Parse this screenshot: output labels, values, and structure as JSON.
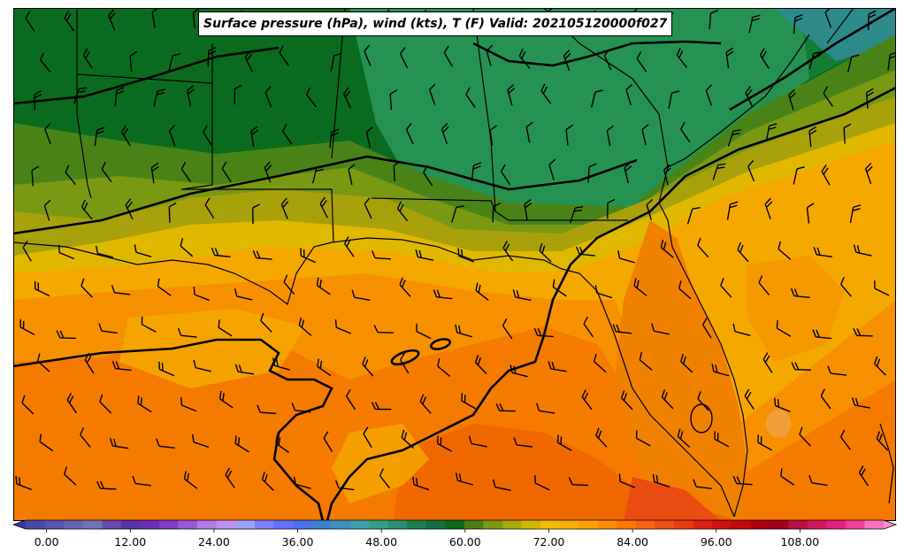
{
  "title": "Surface pressure (hPa), wind (kts), T (F) Valid: 202105120000f027",
  "colorbar": {
    "ticks": [
      "0.00",
      "12.00",
      "24.00",
      "36.00",
      "48.00",
      "60.00",
      "72.00",
      "84.00",
      "96.00",
      "108.00"
    ],
    "min": -3,
    "max": 120,
    "step": 3,
    "colors": [
      "#3a3aa0",
      "#4848a8",
      "#5656b0",
      "#6464b8",
      "#7272b8",
      "#6a4ab0",
      "#5a30a8",
      "#6c2cb8",
      "#7e3cc8",
      "#9a5ad8",
      "#b47ae8",
      "#c090f0",
      "#a0a0ff",
      "#8080ff",
      "#6070ff",
      "#4870f0",
      "#3a80d0",
      "#3a90c0",
      "#3aa0b0",
      "#30a080",
      "#289070",
      "#1e8050",
      "#107040",
      "#086818",
      "#4a8010",
      "#7a9810",
      "#a8a808",
      "#d0b800",
      "#f0c000",
      "#f8b000",
      "#ffa000",
      "#ff8c00",
      "#ff7800",
      "#f86410",
      "#f05010",
      "#e83c10",
      "#e02010",
      "#d01010",
      "#c00808",
      "#b00010",
      "#a00018",
      "#b81040",
      "#d01860",
      "#e82080",
      "#f040a0",
      "#f870c0",
      "#ff90d0"
    ]
  },
  "map_colors": {
    "temp_bands": [
      "#0a6b1e",
      "#1f8a45",
      "#2e9c60",
      "#4a8418",
      "#7a9912",
      "#a8a10c",
      "#d8b600",
      "#f0c000",
      "#f5a800",
      "#f79000",
      "#f57a00",
      "#f06800",
      "#e94c10",
      "#f0a040"
    ],
    "pressure_contour": "#000000",
    "boundaries": "#000000"
  }
}
